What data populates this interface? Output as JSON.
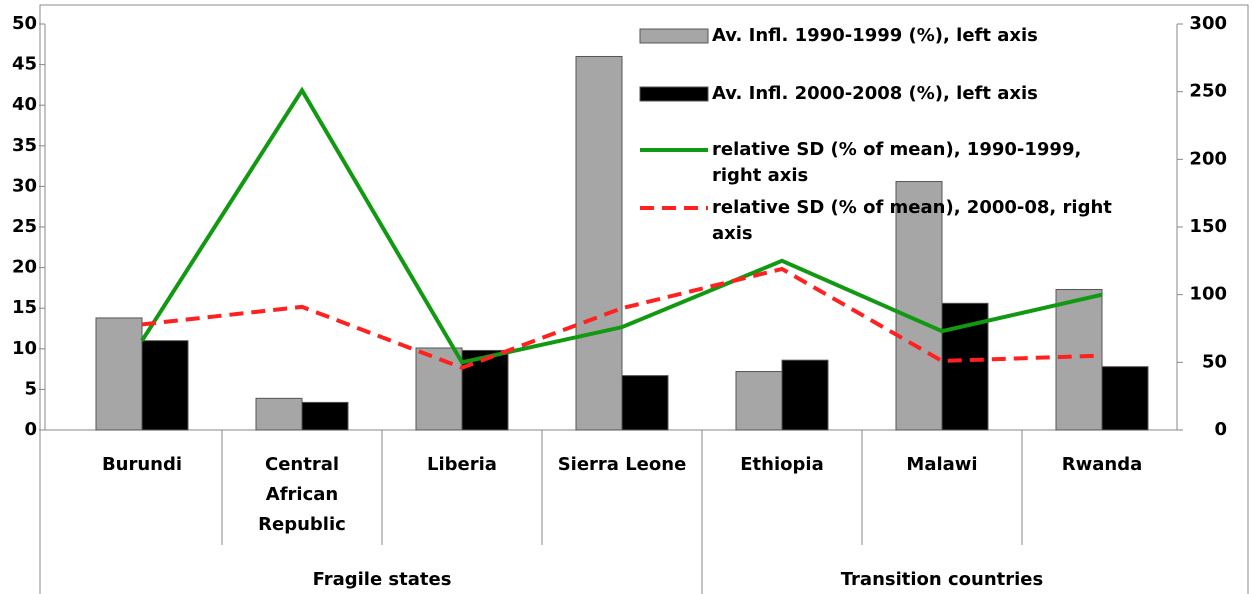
{
  "chart_data": {
    "type": "bar-line",
    "categories": [
      "Burundi",
      "Central African Republic",
      "Liberia",
      "Sierra Leone",
      "Ethiopia",
      "Malawi",
      "Rwanda"
    ],
    "groups": [
      {
        "label": "Fragile states",
        "span": 4
      },
      {
        "label": "Transition countries",
        "span": 3
      }
    ],
    "series": [
      {
        "name": "Av. Infl. 1990-1999 (%), left axis",
        "type": "bar",
        "color": "#a6a6a6",
        "values": [
          13.8,
          3.9,
          10.1,
          46,
          7.2,
          30.6,
          17.3
        ]
      },
      {
        "name": "Av. Infl. 2000-2008 (%), left axis",
        "type": "bar",
        "color": "#000000",
        "values": [
          11,
          3.4,
          9.8,
          6.7,
          8.6,
          15.6,
          7.8
        ]
      },
      {
        "name": "relative SD (% of mean), 1990-1999, right axis",
        "type": "line",
        "axis": "y2",
        "color": "#119911",
        "dash": false,
        "values": [
          66,
          251,
          50,
          76,
          125,
          73,
          100
        ]
      },
      {
        "name": "relative SD (% of mean), 2000-08, right axis",
        "type": "line",
        "axis": "y2",
        "color": "#ff2020",
        "dash": true,
        "values": [
          78,
          91,
          46,
          90,
          119,
          51,
          55
        ]
      }
    ],
    "ylim": [
      0,
      50
    ],
    "yticks": [
      0,
      5,
      10,
      15,
      20,
      25,
      30,
      35,
      40,
      45,
      50
    ],
    "y2lim": [
      0,
      300
    ],
    "y2ticks": [
      0,
      50,
      100,
      150,
      200,
      250,
      300
    ]
  }
}
